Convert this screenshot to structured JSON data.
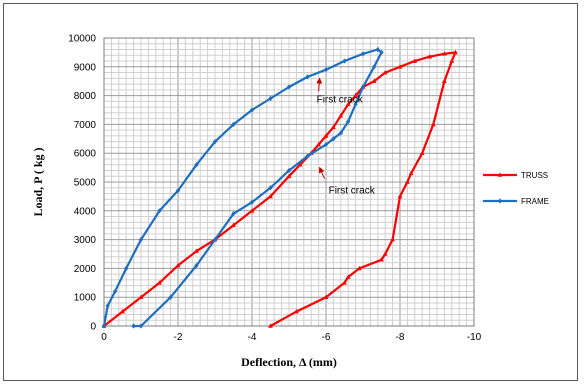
{
  "chart_data": {
    "type": "line",
    "xlabel": "Deflection, Δ  (mm)",
    "ylabel": "Load, P ( kg )",
    "xlim": [
      0,
      -10
    ],
    "ylim": [
      0,
      10000
    ],
    "x_ticks": [
      "0",
      "-2",
      "-4",
      "-6",
      "-8",
      "-10"
    ],
    "y_ticks": [
      "0",
      "1000",
      "2000",
      "3000",
      "4000",
      "5000",
      "6000",
      "7000",
      "8000",
      "9000",
      "10000"
    ],
    "grid": true,
    "legend_position": "right",
    "series": [
      {
        "name": "TRUSS",
        "color": "#ff0000",
        "marker": "triangle",
        "x": [
          0,
          -0.5,
          -1.0,
          -1.5,
          -2.0,
          -2.5,
          -3.0,
          -3.5,
          -4.0,
          -4.5,
          -5.0,
          -5.3,
          -5.6,
          -5.8,
          -6.0,
          -6.2,
          -6.4,
          -6.6,
          -6.8,
          -7.0,
          -7.3,
          -7.6,
          -8.0,
          -8.4,
          -8.8,
          -9.2,
          -9.5,
          -9.4,
          -9.2,
          -8.9,
          -8.6,
          -8.3,
          -8.2,
          -8.0,
          -7.8,
          -7.6,
          -7.5,
          -6.9,
          -6.6,
          -6.5,
          -6.0,
          -5.2,
          -4.5
        ],
        "y": [
          0,
          500,
          1000,
          1500,
          2100,
          2600,
          3000,
          3500,
          4000,
          4500,
          5200,
          5600,
          6000,
          6300,
          6600,
          6900,
          7300,
          7700,
          8000,
          8300,
          8500,
          8800,
          9000,
          9200,
          9350,
          9450,
          9500,
          9200,
          8500,
          7000,
          6000,
          5300,
          5000,
          4500,
          3000,
          2500,
          2300,
          2000,
          1700,
          1500,
          1000,
          500,
          0
        ]
      },
      {
        "name": "FRAME",
        "color": "#1f6fbf",
        "marker": "diamond",
        "x": [
          0,
          -0.1,
          -0.3,
          -0.6,
          -1.0,
          -1.5,
          -2.0,
          -2.5,
          -3.0,
          -3.5,
          -4.0,
          -4.5,
          -5.0,
          -5.5,
          -6.0,
          -6.5,
          -7.0,
          -7.4,
          -7.5,
          -7.3,
          -7.0,
          -6.8,
          -6.6,
          -6.4,
          -6.2,
          -6.0,
          -5.5,
          -5.0,
          -4.5,
          -4.0,
          -3.5,
          -3.0,
          -2.5,
          -1.8,
          -1.0,
          -0.8
        ],
        "y": [
          0,
          700,
          1200,
          2000,
          3000,
          4000,
          4700,
          5600,
          6400,
          7000,
          7500,
          7900,
          8300,
          8650,
          8900,
          9200,
          9450,
          9600,
          9500,
          9000,
          8300,
          7700,
          7100,
          6700,
          6500,
          6300,
          5900,
          5400,
          4800,
          4300,
          3900,
          3000,
          2100,
          1000,
          0,
          0
        ]
      }
    ],
    "annotations": [
      {
        "text": "First  crack",
        "x": -5.8,
        "y": 8700
      },
      {
        "text": "First  crack",
        "x": -5.8,
        "y": 5600
      }
    ]
  }
}
